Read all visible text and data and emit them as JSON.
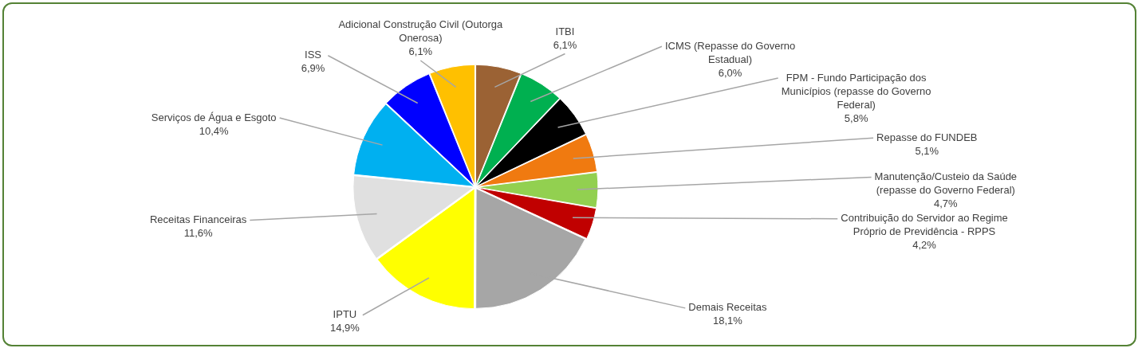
{
  "chart_data": {
    "type": "pie",
    "categories": [
      "ITBI",
      "ICMS (Repasse do Governo Estadual)",
      "FPM - Fundo Participação dos Municípios (repasse do Governo Federal)",
      "Repasse do FUNDEB",
      "Manutenção/Custeio da Saúde (repasse do Governo Federal)",
      "Contribuição do Servidor ao Regime Próprio de Previdência - RPPS",
      "Demais Receitas",
      "IPTU",
      "Receitas Financeiras",
      "Serviços de Água e Esgoto",
      "ISS",
      "Adicional Construção Civil (Outorga Onerosa)"
    ],
    "values": [
      6.1,
      6.0,
      5.8,
      5.1,
      4.7,
      4.2,
      18.1,
      14.9,
      11.6,
      10.4,
      6.9,
      6.1
    ],
    "colors": [
      "#9b6234",
      "#00b050",
      "#000000",
      "#f07a10",
      "#92d050",
      "#c00000",
      "#a6a6a6",
      "#ffff00",
      "#e0e0e0",
      "#00b0f0",
      "#0000ff",
      "#ffc000"
    ],
    "value_labels": [
      "6,1%",
      "6,0%",
      "5,8%",
      "5,1%",
      "4,7%",
      "4,2%",
      "18,1%",
      "14,9%",
      "11,6%",
      "10,4%",
      "6,9%",
      "6,1%"
    ]
  }
}
